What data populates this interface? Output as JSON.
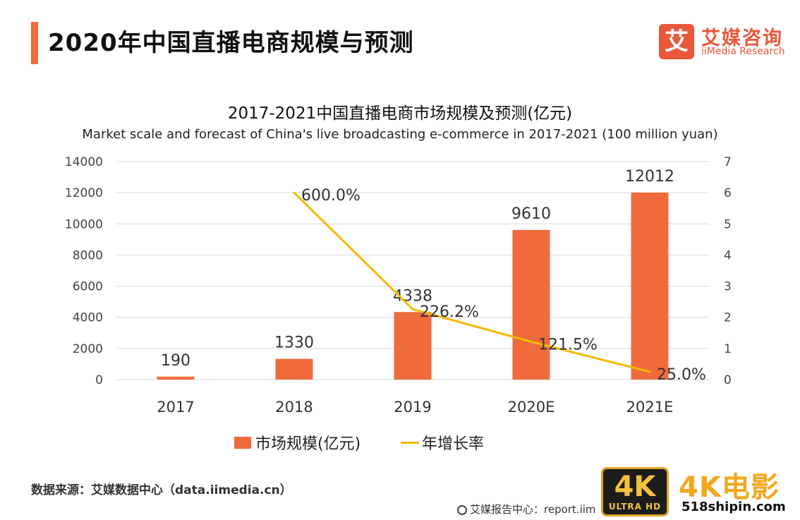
{
  "header": {
    "title": "2020年中国直播电商规模与预测",
    "logo_mark": "艾",
    "logo_cn": "艾媒咨询",
    "logo_en": "iiMedia Research"
  },
  "chart_title": "2017-2021中国直播电商市场规模及预测(亿元)",
  "chart_subtitle": "Market scale and forecast of China's live broadcasting e-commerce in 2017-2021 (100 million yuan)",
  "chart_data": {
    "type": "bar",
    "categories": [
      "2017",
      "2018",
      "2019",
      "2020E",
      "2021E"
    ],
    "series": [
      {
        "name": "市场规模(亿元)",
        "type": "bar",
        "axis": "left",
        "values": [
          190,
          1330,
          4338,
          9610,
          12012
        ],
        "labels": [
          "190",
          "1330",
          "4338",
          "9610",
          "12012"
        ]
      },
      {
        "name": "年增长率",
        "type": "line",
        "axis": "right",
        "values": [
          null,
          6.0,
          2.262,
          1.215,
          0.25
        ],
        "labels": [
          "",
          "600.0%",
          "226.2%",
          "121.5%",
          "25.0%"
        ]
      }
    ],
    "y_left": {
      "min": 0,
      "max": 14000,
      "ticks": [
        "0",
        "2000",
        "4000",
        "6000",
        "8000",
        "10000",
        "12000",
        "14000"
      ]
    },
    "y_right": {
      "min": 0,
      "max": 7,
      "ticks": [
        "0",
        "1",
        "2",
        "3",
        "4",
        "5",
        "6",
        "7"
      ]
    },
    "grid": true,
    "legend_position": "bottom",
    "colors": {
      "bar": "#ef6b3c",
      "line": "#f5b800",
      "grid": "#d9d9d9"
    }
  },
  "legend": {
    "bar_label": "市场规模(亿元)",
    "line_label": "年增长率"
  },
  "source": "数据来源：艾媒数据中心（data.iimedia.cn）",
  "footer_source": "艾媒报告中心：report.iim",
  "watermark": {
    "badge_top": "4K",
    "badge_bottom": "ULTRA HD",
    "brand": "4K电影",
    "url": "518shipin.com"
  }
}
